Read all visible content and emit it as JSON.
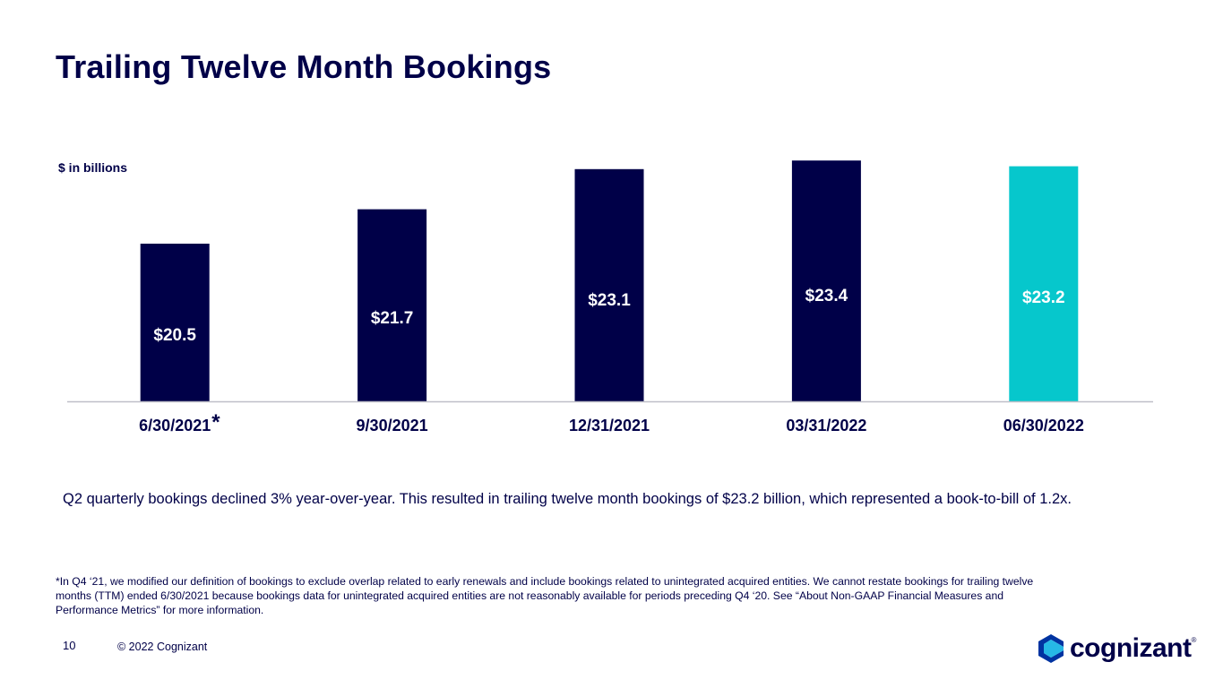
{
  "slide": {
    "title": "Trailing Twelve Month Bookings",
    "units_label": "$ in billions",
    "summary": "Q2 quarterly bookings declined 3% year-over-year. This resulted in trailing twelve month bookings of $23.2 billion, which represented a book-to-bill of 1.2x.",
    "footnote": "*In Q4 ‘21, we modified our definition of bookings to exclude overlap related to early renewals and include bookings related to unintegrated acquired entities. We cannot restate bookings for trailing twelve months (TTM) ended 6/30/2021 because bookings data for unintegrated acquired entities are not reasonably available for periods preceding Q4 ‘20.  See “About Non-GAAP Financial Measures and Performance Metrics” for more information.",
    "page_number": "10",
    "copyright": "© 2022 Cognizant"
  },
  "logo": {
    "text": "cognizant",
    "registered": "®",
    "icon": "cognizant-logo-mark"
  },
  "colors": {
    "primary": "#000048",
    "highlight": "#06C7CC",
    "axis": "#bfbfc8",
    "label_on_dark": "#ffffff",
    "label_on_highlight": "#ffffff"
  },
  "chart_data": {
    "type": "bar",
    "title": "Trailing Twelve Month Bookings",
    "xlabel": "",
    "ylabel": "$ in billions",
    "categories": [
      "6/30/2021",
      "9/30/2021",
      "12/31/2021",
      "03/31/2022",
      "06/30/2022"
    ],
    "values": [
      20.5,
      21.7,
      23.1,
      23.4,
      23.2
    ],
    "value_labels": [
      "$20.5",
      "$21.7",
      "$23.1",
      "$23.4",
      "$23.2"
    ],
    "highlight_index": 4,
    "category_markers": [
      "*",
      "",
      "",
      "",
      ""
    ],
    "ylim": [
      15,
      24
    ],
    "grid": false,
    "legend": "none"
  }
}
